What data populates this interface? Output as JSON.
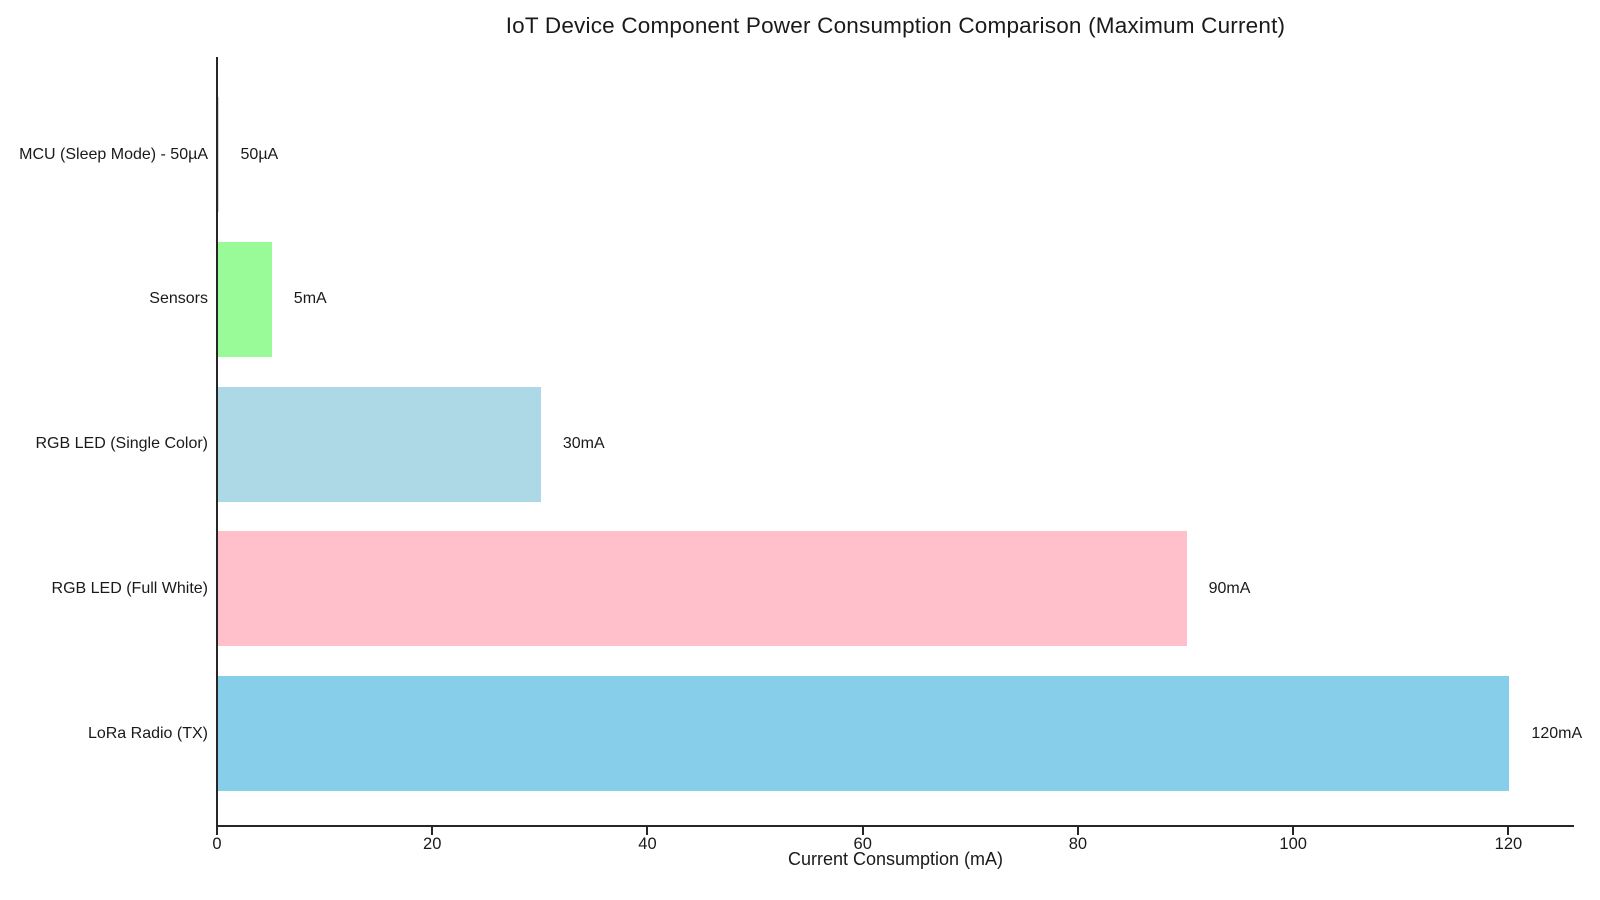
{
  "chart_data": {
    "type": "bar",
    "orientation": "horizontal",
    "title": "IoT Device Component Power Consumption Comparison (Maximum Current)",
    "xlabel": "Current Consumption (mA)",
    "categories": [
      "MCU (Sleep Mode) - 50µA",
      "Sensors",
      "RGB LED (Single Color)",
      "RGB LED (Full White)",
      "LoRa Radio (TX)"
    ],
    "values": [
      0.05,
      5,
      30,
      90,
      120
    ],
    "value_labels": [
      "50µA",
      "5mA",
      "30mA",
      "90mA",
      "120mA"
    ],
    "bar_colors": [
      "#d3d3d3",
      "#98FB98",
      "#ADD8E6",
      "#FFC0CB",
      "#87CEEB"
    ],
    "xlim": [
      0,
      126
    ],
    "xticks": [
      0,
      20,
      40,
      60,
      80,
      100,
      120
    ],
    "xtick_labels": [
      "0",
      "20",
      "40",
      "60",
      "80",
      "100",
      "120"
    ],
    "grid": false,
    "legend": null,
    "axis_color": "#262626",
    "text_color": "#1a1a1a",
    "background_color": "#ffffff"
  }
}
